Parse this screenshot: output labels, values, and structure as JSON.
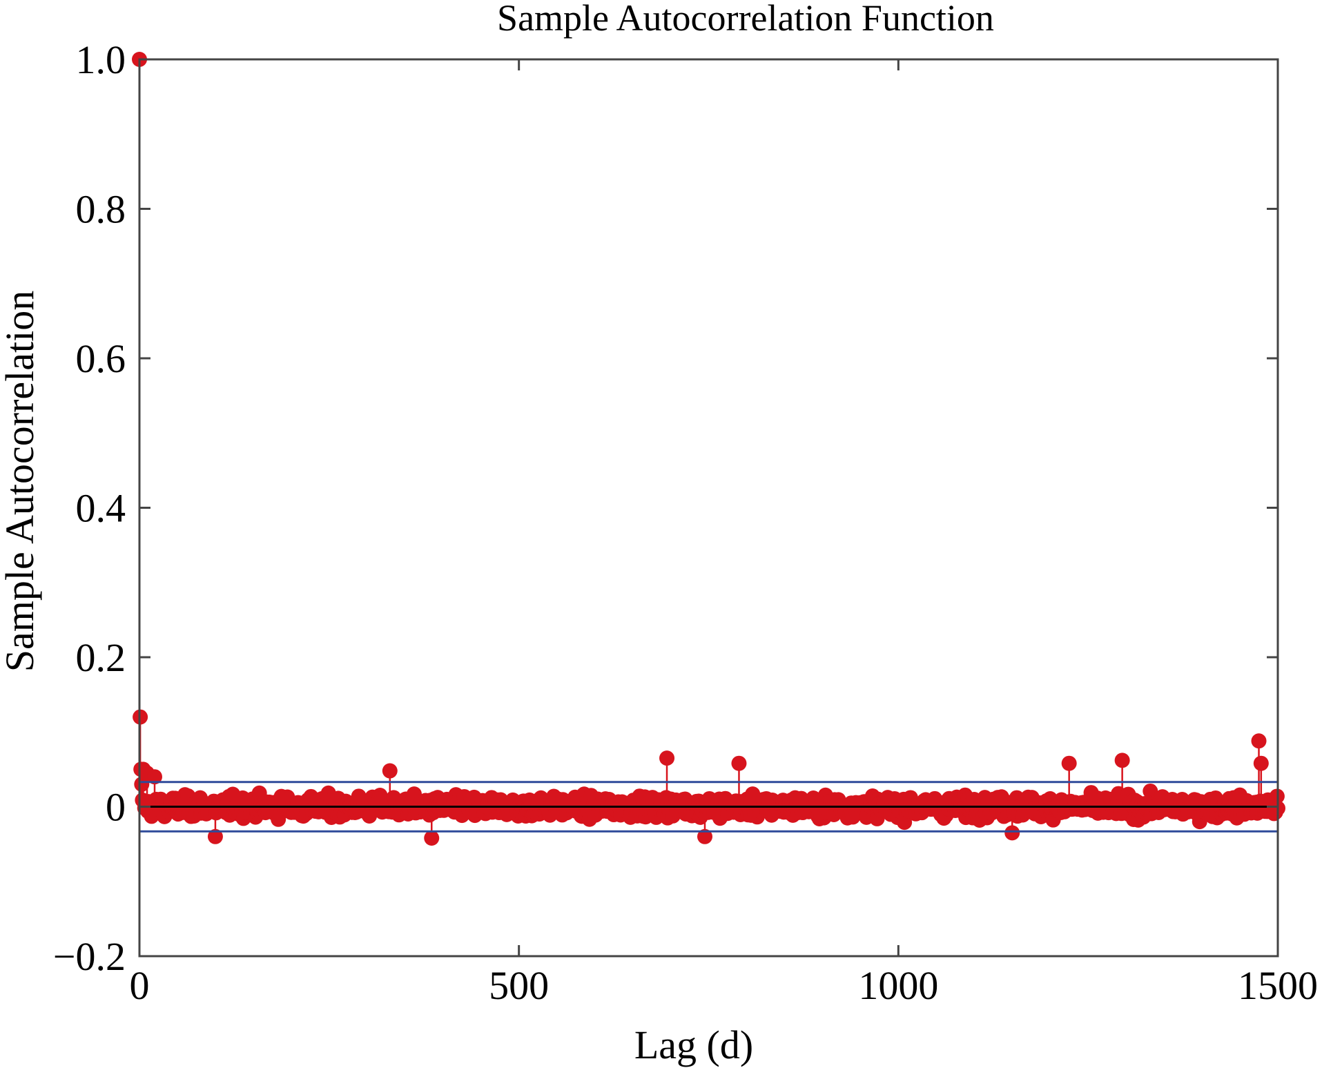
{
  "chart_data": {
    "type": "stem",
    "title": "Sample Autocorrelation Function",
    "xlabel": "Lag (d)",
    "ylabel": "Sample Autocorrelation",
    "xlim": [
      0,
      1500
    ],
    "ylim": [
      -0.2,
      1.0
    ],
    "x_ticks": [
      0,
      500,
      1000,
      1500
    ],
    "x_tick_labels": [
      "0",
      "500",
      "1000",
      "1500"
    ],
    "y_ticks": [
      -0.2,
      0,
      0.2,
      0.4,
      0.6,
      0.8,
      1.0
    ],
    "y_tick_labels": [
      "−0.2",
      "0",
      "0.2",
      "0.4",
      "0.6",
      "0.8",
      "1.0"
    ],
    "grid": false,
    "confidence_bounds": [
      0.033,
      -0.033
    ],
    "colors": {
      "stems": "#d7141d",
      "bounds": "#2e4a9a",
      "zero_line": "#000000",
      "axes": "#444444"
    },
    "lags": {
      "start": 0,
      "end": 1500,
      "step": 1
    },
    "notable_points": [
      {
        "lag": 0,
        "acf": 1.0
      },
      {
        "lag": 1,
        "acf": 0.12
      },
      {
        "lag": 2,
        "acf": 0.05
      },
      {
        "lag": 3,
        "acf": 0.03
      },
      {
        "lag": 5,
        "acf": 0.05
      },
      {
        "lag": 10,
        "acf": 0.045
      },
      {
        "lag": 20,
        "acf": 0.04
      },
      {
        "lag": 100,
        "acf": -0.04
      },
      {
        "lag": 330,
        "acf": 0.048
      },
      {
        "lag": 385,
        "acf": -0.042
      },
      {
        "lag": 695,
        "acf": 0.065
      },
      {
        "lag": 745,
        "acf": -0.04
      },
      {
        "lag": 790,
        "acf": 0.058
      },
      {
        "lag": 1150,
        "acf": -0.035
      },
      {
        "lag": 1225,
        "acf": 0.058
      },
      {
        "lag": 1295,
        "acf": 0.062
      },
      {
        "lag": 1475,
        "acf": 0.088
      },
      {
        "lag": 1478,
        "acf": 0.058
      }
    ],
    "bulk_amplitude": 0.028
  }
}
